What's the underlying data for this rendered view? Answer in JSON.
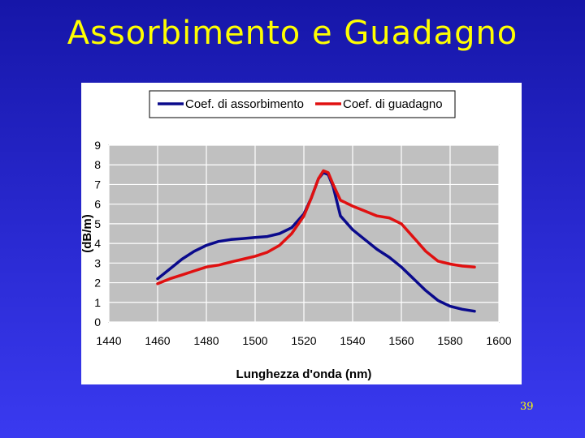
{
  "slide": {
    "title": "Assorbimento e Guadagno",
    "page_number": "39"
  },
  "chart_data": {
    "type": "line",
    "title": "",
    "xlabel": "Lunghezza d'onda (nm)",
    "ylabel": "(dB/m)",
    "xlim": [
      1440,
      1600
    ],
    "ylim": [
      0,
      9
    ],
    "xticks": [
      1440,
      1460,
      1480,
      1500,
      1520,
      1540,
      1560,
      1580,
      1600
    ],
    "yticks": [
      0,
      1,
      2,
      3,
      4,
      5,
      6,
      7,
      8,
      9
    ],
    "grid": "horizontal",
    "legend_position": "top",
    "plot_background": "#c0c0c0",
    "series": [
      {
        "name": "Coef. di assorbimento",
        "color": "#0a0a8c",
        "x": [
          1460,
          1465,
          1470,
          1475,
          1480,
          1485,
          1490,
          1495,
          1500,
          1505,
          1510,
          1515,
          1520,
          1523,
          1526,
          1528,
          1530,
          1532,
          1535,
          1540,
          1545,
          1550,
          1555,
          1560,
          1565,
          1570,
          1575,
          1580,
          1585,
          1590
        ],
        "y": [
          2.2,
          2.7,
          3.2,
          3.6,
          3.9,
          4.1,
          4.2,
          4.25,
          4.3,
          4.35,
          4.5,
          4.8,
          5.5,
          6.3,
          7.3,
          7.6,
          7.5,
          6.9,
          5.4,
          4.7,
          4.2,
          3.7,
          3.3,
          2.8,
          2.2,
          1.6,
          1.1,
          0.8,
          0.65,
          0.55
        ]
      },
      {
        "name": "Coef. di guadagno",
        "color": "#e01010",
        "x": [
          1460,
          1465,
          1470,
          1475,
          1480,
          1485,
          1490,
          1495,
          1500,
          1505,
          1510,
          1515,
          1520,
          1523,
          1526,
          1528,
          1530,
          1532,
          1535,
          1540,
          1545,
          1550,
          1555,
          1560,
          1565,
          1570,
          1575,
          1580,
          1585,
          1590
        ],
        "y": [
          1.95,
          2.2,
          2.4,
          2.6,
          2.8,
          2.9,
          3.05,
          3.2,
          3.35,
          3.55,
          3.9,
          4.5,
          5.4,
          6.3,
          7.3,
          7.7,
          7.6,
          7.0,
          6.2,
          5.9,
          5.65,
          5.4,
          5.3,
          5.0,
          4.3,
          3.6,
          3.1,
          2.95,
          2.85,
          2.8
        ]
      }
    ]
  }
}
